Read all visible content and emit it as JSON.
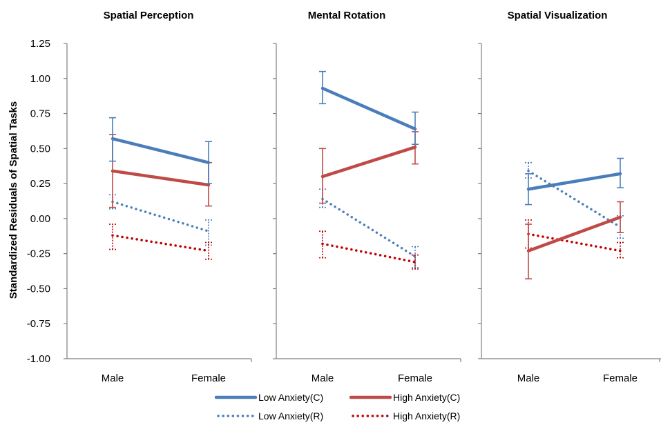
{
  "chart_data": {
    "type": "line",
    "ylabel": "Standardized Residuals of Spatial Tasks",
    "ylim": [
      -1.0,
      1.25
    ],
    "ytick_step": 0.25,
    "yticks": [
      "1.25",
      "1.00",
      "0.75",
      "0.50",
      "0.25",
      "0.00",
      "-0.25",
      "-0.50",
      "-0.75",
      "-1.00"
    ],
    "categories": [
      "Male",
      "Female"
    ],
    "grid": false,
    "legend_position": "bottom",
    "legend": [
      {
        "key": "lowC",
        "label": "Low Anxiety(C)",
        "color": "#4a7ebb",
        "style": "solid"
      },
      {
        "key": "highC",
        "label": "High Anxiety(C)",
        "color": "#be4b48",
        "style": "solid"
      },
      {
        "key": "lowR",
        "label": "Low Anxiety(R)",
        "color": "#4a7ebb",
        "style": "dotted"
      },
      {
        "key": "highR",
        "label": "High Anxiety(R)",
        "color": "#c00000",
        "style": "dotted"
      }
    ],
    "panels": [
      {
        "title": "Spatial Perception",
        "series": {
          "lowC": {
            "values": [
              0.57,
              0.4
            ],
            "err_low": [
              0.41,
              0.25
            ],
            "err_high": [
              0.72,
              0.55
            ]
          },
          "highC": {
            "values": [
              0.34,
              0.24
            ],
            "err_low": [
              0.08,
              0.09
            ],
            "err_high": [
              0.6,
              0.4
            ]
          },
          "lowR": {
            "values": [
              0.12,
              -0.09
            ],
            "err_low": [
              0.07,
              -0.19
            ],
            "err_high": [
              0.17,
              -0.01
            ]
          },
          "highR": {
            "values": [
              -0.12,
              -0.23
            ],
            "err_low": [
              -0.22,
              -0.29
            ],
            "err_high": [
              -0.04,
              -0.17
            ]
          }
        }
      },
      {
        "title": "Mental Rotation",
        "series": {
          "lowC": {
            "values": [
              0.93,
              0.64
            ],
            "err_low": [
              0.82,
              0.53
            ],
            "err_high": [
              1.05,
              0.76
            ]
          },
          "highC": {
            "values": [
              0.3,
              0.51
            ],
            "err_low": [
              0.11,
              0.39
            ],
            "err_high": [
              0.5,
              0.62
            ]
          },
          "lowR": {
            "values": [
              0.14,
              -0.27
            ],
            "err_low": [
              0.08,
              -0.35
            ],
            "err_high": [
              0.21,
              -0.2
            ]
          },
          "highR": {
            "values": [
              -0.18,
              -0.31
            ],
            "err_low": [
              -0.28,
              -0.36
            ],
            "err_high": [
              -0.09,
              -0.26
            ]
          }
        }
      },
      {
        "title": "Spatial Visualization",
        "series": {
          "lowC": {
            "values": [
              0.21,
              0.32
            ],
            "err_low": [
              0.1,
              0.22
            ],
            "err_high": [
              0.32,
              0.43
            ]
          },
          "highC": {
            "values": [
              -0.23,
              0.01
            ],
            "err_low": [
              -0.43,
              -0.1
            ],
            "err_high": [
              -0.04,
              0.12
            ]
          },
          "lowR": {
            "values": [
              0.34,
              -0.06
            ],
            "err_low": [
              0.29,
              -0.14
            ],
            "err_high": [
              0.4,
              0.02
            ]
          },
          "highR": {
            "values": [
              -0.11,
              -0.23
            ],
            "err_low": [
              -0.21,
              -0.28
            ],
            "err_high": [
              -0.01,
              -0.17
            ]
          }
        }
      }
    ]
  }
}
